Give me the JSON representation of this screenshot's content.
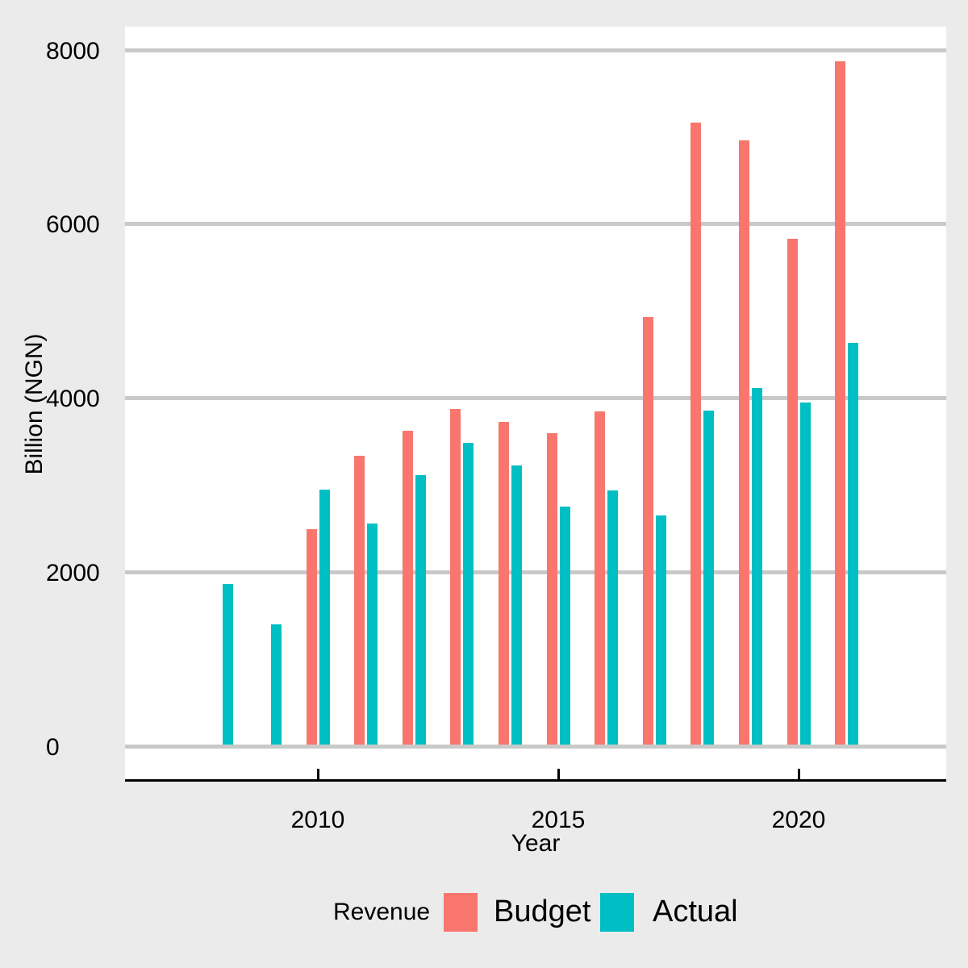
{
  "figure": {
    "background_color": "#EBEBEB",
    "panel_background_color": "#FFFFFF",
    "gridline_color": "#C9C9C9",
    "axis_line_color": "#000000",
    "text_color": "#000000"
  },
  "y_axis": {
    "title": "Billion (NGN)",
    "tick_values": [
      0,
      2000,
      4000,
      6000,
      8000
    ],
    "tick_labels": [
      "0",
      "2000",
      "4000",
      "6000",
      "8000"
    ]
  },
  "x_axis": {
    "title": "Year",
    "tick_values": [
      2010,
      2015,
      2020
    ],
    "tick_labels": [
      "2010",
      "2015",
      "2020"
    ]
  },
  "legend": {
    "title": "Revenue",
    "position": "bottom",
    "items": [
      {
        "label": "Budget",
        "color": "#F8766D"
      },
      {
        "label": "Actual",
        "color": "#00BFC4"
      }
    ]
  },
  "chart_data": {
    "type": "bar",
    "title": "",
    "xlabel": "Year",
    "ylabel": "Billion (NGN)",
    "ylim": [
      0,
      8000
    ],
    "grid": "horizontal-major-only",
    "legend_position": "bottom",
    "bar_layout": "grouped-dodged",
    "categories": [
      2008,
      2009,
      2010,
      2011,
      2012,
      2013,
      2014,
      2015,
      2016,
      2017,
      2018,
      2019,
      2020,
      2021
    ],
    "series": [
      {
        "name": "Budget",
        "color": "#F8766D",
        "values": [
          null,
          null,
          2500,
          3340,
          3630,
          3880,
          3730,
          3600,
          3850,
          4930,
          7170,
          6960,
          5830,
          7870
        ]
      },
      {
        "name": "Actual",
        "color": "#00BFC4",
        "values": [
          1870,
          1400,
          2950,
          2560,
          3120,
          3490,
          3230,
          2760,
          2940,
          2650,
          3860,
          4120,
          3950,
          4640
        ]
      }
    ]
  }
}
